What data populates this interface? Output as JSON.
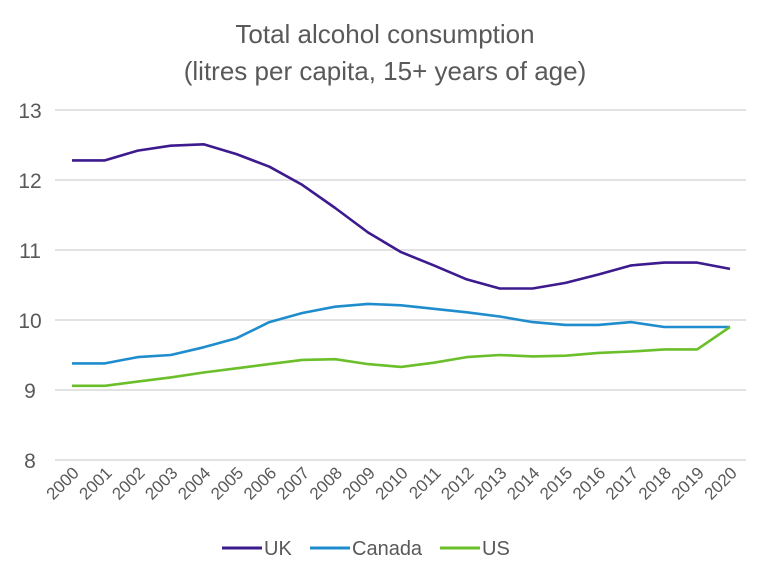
{
  "chart_data": {
    "type": "line",
    "title": [
      "Total alcohol consumption",
      "(litres per capita, 15+ years of age)"
    ],
    "xlabel": "",
    "ylabel": "",
    "ylim": [
      8,
      13
    ],
    "yticks": [
      "8",
      "9",
      "10",
      "11",
      "12",
      "13"
    ],
    "grid": true,
    "legend_position": "bottom",
    "categories": [
      "2000",
      "2001",
      "2002",
      "2003",
      "2004",
      "2005",
      "2006",
      "2007",
      "2008",
      "2009",
      "2010",
      "2011",
      "2012",
      "2013",
      "2014",
      "2015",
      "2016",
      "2017",
      "2018",
      "2019",
      "2020"
    ],
    "series": [
      {
        "name": "UK",
        "color": "#3d1a8e",
        "values": [
          12.28,
          12.28,
          12.42,
          12.49,
          12.51,
          12.37,
          12.19,
          11.93,
          11.6,
          11.25,
          10.97,
          10.78,
          10.58,
          10.45,
          10.45,
          10.53,
          10.65,
          10.78,
          10.82,
          10.82,
          10.73
        ]
      },
      {
        "name": "Canada",
        "color": "#1f8dcd",
        "values": [
          9.38,
          9.38,
          9.47,
          9.5,
          9.61,
          9.74,
          9.97,
          10.1,
          10.19,
          10.23,
          10.21,
          10.16,
          10.11,
          10.05,
          9.97,
          9.93,
          9.93,
          9.97,
          9.9,
          9.9,
          9.9
        ]
      },
      {
        "name": "US",
        "color": "#6abf2a",
        "values": [
          9.06,
          9.06,
          9.12,
          9.18,
          9.25,
          9.31,
          9.37,
          9.43,
          9.44,
          9.37,
          9.33,
          9.39,
          9.47,
          9.5,
          9.48,
          9.49,
          9.53,
          9.55,
          9.58,
          9.58,
          9.9
        ]
      }
    ]
  }
}
